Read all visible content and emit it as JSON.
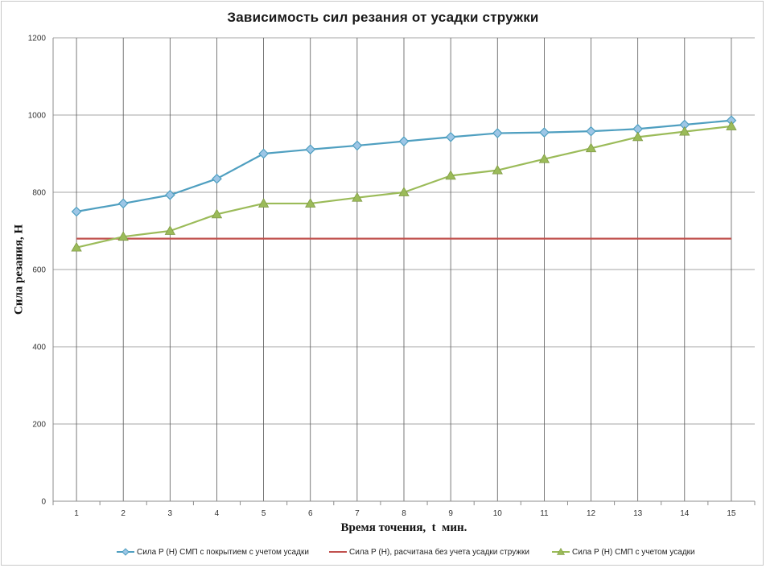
{
  "chart_data": {
    "type": "line",
    "title": "Зависимость сил резания от усадки стружки",
    "xlabel": "Время точения,  t  мин.",
    "ylabel": "Сила резания, Н",
    "x": [
      1,
      2,
      3,
      4,
      5,
      6,
      7,
      8,
      9,
      10,
      11,
      12,
      13,
      14,
      15
    ],
    "ylim": [
      0,
      1200
    ],
    "yticks": [
      0,
      200,
      400,
      600,
      800,
      1000,
      1200
    ],
    "grid": "horizontal and vertical",
    "legend_position": "bottom",
    "series": [
      {
        "name": "Сила Р (Н) СМП с покрытием с учетом усадки",
        "color": "#4f9fc0",
        "marker": "diamond",
        "marker_fill": "#9dc6e6",
        "values": [
          750,
          771,
          793,
          835,
          900,
          911,
          921,
          932,
          943,
          953,
          955,
          958,
          964,
          975,
          986
        ]
      },
      {
        "name": "Сила Р (Н), расчитана без учета усадки стружки",
        "color": "#c0504d",
        "marker": "none",
        "values": [
          680,
          680,
          680,
          680,
          680,
          680,
          680,
          680,
          680,
          680,
          680,
          680,
          680,
          680,
          680
        ]
      },
      {
        "name": "Сила Р (Н) СМП с учетом усадки",
        "color": "#9bbb59",
        "marker": "triangle",
        "marker_fill": "#9bbb59",
        "values": [
          657,
          685,
          700,
          743,
          771,
          771,
          786,
          800,
          843,
          857,
          886,
          914,
          943,
          957,
          971
        ]
      }
    ]
  }
}
